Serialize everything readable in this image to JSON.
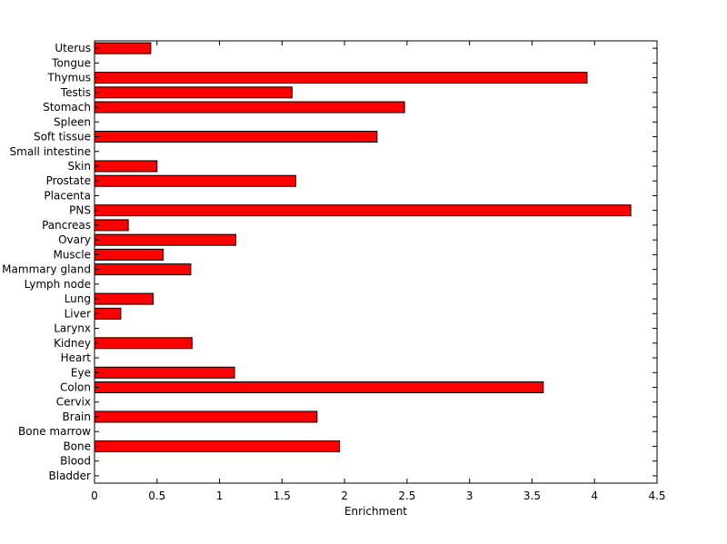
{
  "chart_data": {
    "type": "bar",
    "orientation": "horizontal",
    "title": "",
    "xlabel": "Enrichment",
    "ylabel": "",
    "xlim": [
      0,
      4.5
    ],
    "xticks": [
      0,
      0.5,
      1,
      1.5,
      2,
      2.5,
      3,
      3.5,
      4,
      4.5
    ],
    "xtick_labels": [
      "0",
      "0.5",
      "1",
      "1.5",
      "2",
      "2.5",
      "3",
      "3.5",
      "4",
      "4.5"
    ],
    "grid": false,
    "legend": "none",
    "bar_color": "#ff0000",
    "bar_edge_color": "#000000",
    "categories": [
      "Bladder",
      "Blood",
      "Bone",
      "Bone marrow",
      "Brain",
      "Cervix",
      "Colon",
      "Eye",
      "Heart",
      "Kidney",
      "Larynx",
      "Liver",
      "Lung",
      "Lymph node",
      "Mammary gland",
      "Muscle",
      "Ovary",
      "Pancreas",
      "PNS",
      "Placenta",
      "Prostate",
      "Skin",
      "Small intestine",
      "Soft tissue",
      "Spleen",
      "Stomach",
      "Testis",
      "Thymus",
      "Tongue",
      "Uterus"
    ],
    "values": [
      0,
      0,
      1.96,
      0,
      1.78,
      0,
      3.59,
      1.12,
      0,
      0.78,
      0,
      0.21,
      0.47,
      0,
      0.77,
      0.55,
      1.13,
      0.27,
      4.29,
      0,
      1.61,
      0.5,
      0,
      2.26,
      0,
      2.48,
      1.58,
      3.94,
      0,
      0.45
    ]
  }
}
